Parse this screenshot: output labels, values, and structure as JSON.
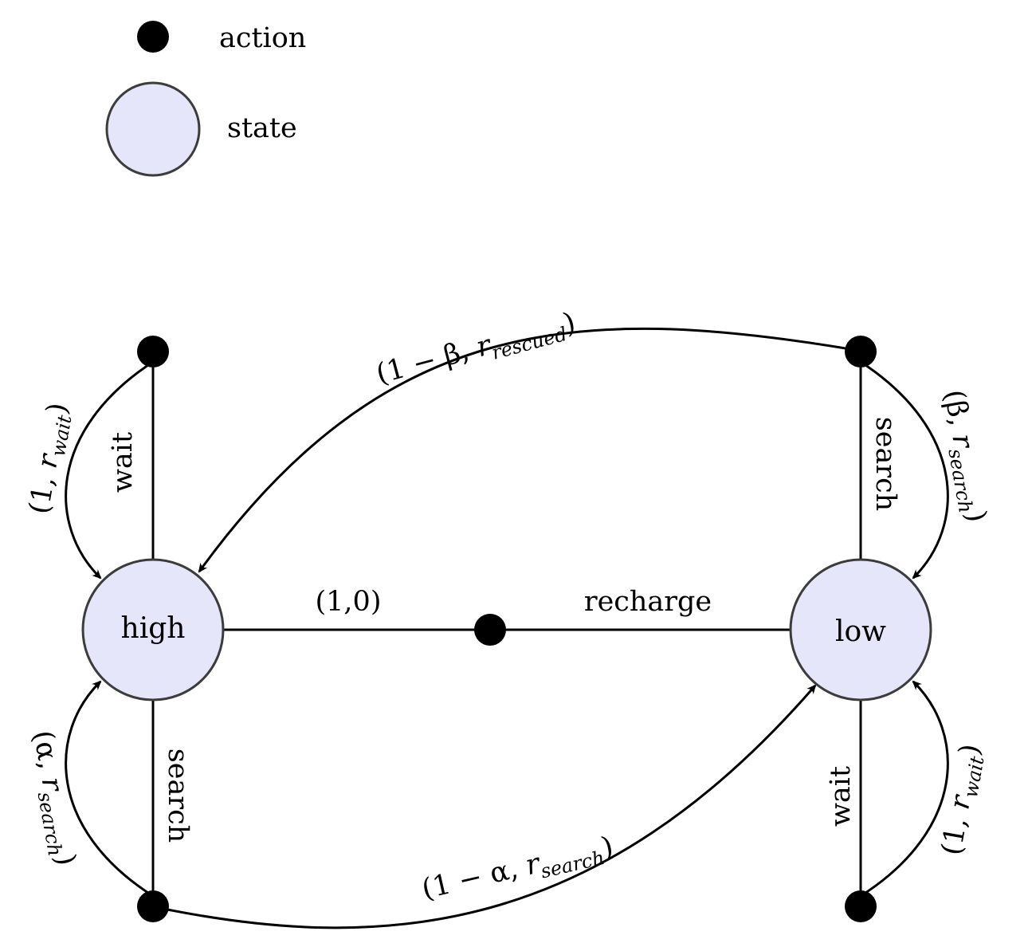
{
  "legend": {
    "action": "action",
    "state": "state"
  },
  "states": {
    "high": "high",
    "low": "low"
  },
  "actions": {
    "high_wait": "wait",
    "high_search": "search",
    "low_search": "search",
    "low_wait": "wait",
    "recharge": "recharge"
  },
  "transitions": {
    "high_wait_loop": {
      "open": "(1, ",
      "r": "r",
      "sub": "wait",
      "close": ")"
    },
    "high_search_loop": {
      "open": "(α, ",
      "r": "r",
      "sub": "search",
      "close": ")"
    },
    "high_search_to_low": {
      "open": "(1 − α, ",
      "r": "r",
      "sub": "search",
      "close": ")"
    },
    "low_search_to_high": {
      "open": "(1 − β, ",
      "r": "r",
      "sub": "rescued",
      "close": ")"
    },
    "low_search_loop": {
      "open": "(β, ",
      "r": "r",
      "sub": "search",
      "close": ")"
    },
    "low_wait_loop": {
      "open": "(1, ",
      "r": "r",
      "sub": "wait",
      "close": ")"
    },
    "recharge_to_high": "(1,0)"
  },
  "colors": {
    "state_fill": "#e6e6fa",
    "state_stroke": "#3c3c3c",
    "action_fill": "#000000",
    "edge": "#000000"
  }
}
